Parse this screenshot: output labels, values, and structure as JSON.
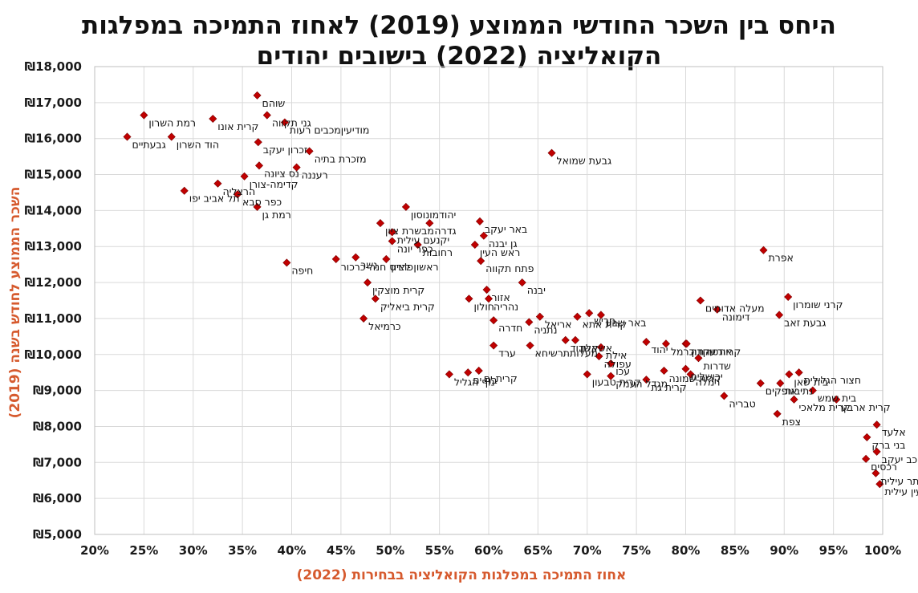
{
  "chart_data": {
    "type": "scatter",
    "title_line1": "היחס בין השכר החודשי הממוצע (2019) לאחוז התמיכה במפלגות",
    "title_line2": "הקואליציה (2022) בישובים יהודים",
    "xlabel": "אחוז התמיכה במפלגות הקואליציה בבחירות (2022)",
    "ylabel": "השכר הממוצע לחודש בשנה (2019)",
    "xlim": [
      0.2,
      1.0
    ],
    "ylim": [
      5000,
      18000
    ],
    "x_ticks": [
      0.2,
      0.25,
      0.3,
      0.35,
      0.4,
      0.45,
      0.5,
      0.55,
      0.6,
      0.65,
      0.7,
      0.75,
      0.8,
      0.85,
      0.9,
      0.95,
      1.0
    ],
    "x_tick_labels": [
      "20%",
      "25%",
      "30%",
      "35%",
      "40%",
      "45%",
      "50%",
      "55%",
      "60%",
      "65%",
      "70%",
      "75%",
      "80%",
      "85%",
      "90%",
      "95%",
      "100%"
    ],
    "y_ticks": [
      5000,
      6000,
      7000,
      8000,
      9000,
      10000,
      11000,
      12000,
      13000,
      14000,
      15000,
      16000,
      17000,
      18000
    ],
    "y_tick_labels": [
      "₪5,000",
      "₪6,000",
      "₪7,000",
      "₪8,000",
      "₪9,000",
      "₪10,000",
      "₪11,000",
      "₪12,000",
      "₪13,000",
      "₪14,000",
      "₪15,000",
      "₪16,000",
      "₪17,000",
      "₪18,000"
    ],
    "grid": true,
    "marker_color": "#c00000",
    "grid_color": "#d9d9d9",
    "points": [
      {
        "name": "שוהם",
        "x": 0.365,
        "y": 17200
      },
      {
        "name": "רמת השרון",
        "x": 0.25,
        "y": 16650
      },
      {
        "name": "קרית אונו",
        "x": 0.32,
        "y": 16550
      },
      {
        "name": "גני תקווה",
        "x": 0.375,
        "y": 16650
      },
      {
        "name": "מודיעיןמכבים רעות",
        "x": 0.393,
        "y": 16450
      },
      {
        "name": "גבעתיים",
        "x": 0.233,
        "y": 16050
      },
      {
        "name": "הוד השרון",
        "x": 0.278,
        "y": 16050
      },
      {
        "name": "זכרון יעקב",
        "x": 0.366,
        "y": 15900
      },
      {
        "name": "מזכרת בתיה",
        "x": 0.418,
        "y": 15650
      },
      {
        "name": "גבעת שמואל",
        "x": 0.664,
        "y": 15600
      },
      {
        "name": "נס ציונה",
        "x": 0.367,
        "y": 15250
      },
      {
        "name": "רעננה",
        "x": 0.405,
        "y": 15200
      },
      {
        "name": "קדימה-צורן",
        "x": 0.352,
        "y": 14950
      },
      {
        "name": "הרצליה",
        "x": 0.325,
        "y": 14750
      },
      {
        "name": "תל אביב יפו",
        "x": 0.291,
        "y": 14550
      },
      {
        "name": "כפר סבא",
        "x": 0.345,
        "y": 14450
      },
      {
        "name": "רמת גן",
        "x": 0.365,
        "y": 14100
      },
      {
        "name": "יהודמונוסון",
        "x": 0.516,
        "y": 14100
      },
      {
        "name": "מבשרת ציון",
        "x": 0.49,
        "y": 13650
      },
      {
        "name": "גדרה",
        "x": 0.54,
        "y": 13650
      },
      {
        "name": "באר יעקב",
        "x": 0.591,
        "y": 13700
      },
      {
        "name": "יקנעם עילית",
        "x": 0.502,
        "y": 13400
      },
      {
        "name": "גן יבנה",
        "x": 0.595,
        "y": 13300
      },
      {
        "name": "כפר יונה",
        "x": 0.502,
        "y": 13150
      },
      {
        "name": "רחובות",
        "x": 0.528,
        "y": 13050
      },
      {
        "name": "ראש העין",
        "x": 0.586,
        "y": 13050
      },
      {
        "name": "אפרת",
        "x": 0.879,
        "y": 12900
      },
      {
        "name": "נשר",
        "x": 0.465,
        "y": 12700
      },
      {
        "name": "ראשון לציון",
        "x": 0.496,
        "y": 12650
      },
      {
        "name": "פתח תקווה",
        "x": 0.592,
        "y": 12600
      },
      {
        "name": "חיפה",
        "x": 0.395,
        "y": 12550
      },
      {
        "name": "פרדס חנה-כרכור",
        "x": 0.445,
        "y": 12650
      },
      {
        "name": "קרית מוצקין",
        "x": 0.477,
        "y": 12000
      },
      {
        "name": "יבנה",
        "x": 0.634,
        "y": 12000
      },
      {
        "name": "אזור",
        "x": 0.598,
        "y": 11800
      },
      {
        "name": "קרית ביאליק",
        "x": 0.485,
        "y": 11550
      },
      {
        "name": "נהריה",
        "x": 0.6,
        "y": 11550
      },
      {
        "name": "חולון",
        "x": 0.58,
        "y": 11550
      },
      {
        "name": "מעלה אדומים",
        "x": 0.815,
        "y": 11500
      },
      {
        "name": "קרני שומרון",
        "x": 0.904,
        "y": 11600
      },
      {
        "name": "דימונה",
        "x": 0.832,
        "y": 11250
      },
      {
        "name": "חריש",
        "x": 0.702,
        "y": 11150
      },
      {
        "name": "גבעת זאב",
        "x": 0.895,
        "y": 11100
      },
      {
        "name": "קרית אתא",
        "x": 0.69,
        "y": 11050
      },
      {
        "name": "באר שבע",
        "x": 0.714,
        "y": 11100
      },
      {
        "name": "כרמיאל",
        "x": 0.473,
        "y": 11000
      },
      {
        "name": "חדרה",
        "x": 0.605,
        "y": 10950
      },
      {
        "name": "נתניה",
        "x": 0.641,
        "y": 10900
      },
      {
        "name": "אריאל",
        "x": 0.652,
        "y": 11050
      },
      {
        "name": "אור יהודה",
        "x": 0.8,
        "y": 10300
      },
      {
        "name": "מעלותתרשיחא",
        "x": 0.642,
        "y": 10250
      },
      {
        "name": "אשדוד",
        "x": 0.678,
        "y": 10400
      },
      {
        "name": "טירת כרמל",
        "x": 0.78,
        "y": 10300
      },
      {
        "name": "קרית עקרון",
        "x": 0.801,
        "y": 10300
      },
      {
        "name": "יהוד",
        "x": 0.76,
        "y": 10350
      },
      {
        "name": "אשקלון",
        "x": 0.688,
        "y": 10400
      },
      {
        "name": "עפולה",
        "x": 0.712,
        "y": 9950
      },
      {
        "name": "אילת",
        "x": 0.714,
        "y": 10200
      },
      {
        "name": "ערד",
        "x": 0.605,
        "y": 10250
      },
      {
        "name": "שדרות",
        "x": 0.813,
        "y": 9900
      },
      {
        "name": "עכו",
        "x": 0.724,
        "y": 9750
      },
      {
        "name": "ירושלים",
        "x": 0.8,
        "y": 9600
      },
      {
        "name": "קרית שמונה",
        "x": 0.778,
        "y": 9550
      },
      {
        "name": "בית שאן",
        "x": 0.905,
        "y": 9450
      },
      {
        "name": "חצור הגלילית",
        "x": 0.915,
        "y": 9500
      },
      {
        "name": "רמלה",
        "x": 0.805,
        "y": 9450
      },
      {
        "name": "קרית ים",
        "x": 0.59,
        "y": 9550
      },
      {
        "name": "מגדל העמק",
        "x": 0.724,
        "y": 9400
      },
      {
        "name": "אופקים",
        "x": 0.876,
        "y": 9200
      },
      {
        "name": "נתיבות",
        "x": 0.896,
        "y": 9200
      },
      {
        "name": "בית שמש",
        "x": 0.929,
        "y": 9000
      },
      {
        "name": "בת ים",
        "x": 0.579,
        "y": 9500
      },
      {
        "name": "נוף הגליל",
        "x": 0.56,
        "y": 9450
      },
      {
        "name": "קרית גת",
        "x": 0.76,
        "y": 9300
      },
      {
        "name": "טבריה",
        "x": 0.839,
        "y": 8850
      },
      {
        "name": "קרית מלאכי",
        "x": 0.91,
        "y": 8750
      },
      {
        "name": "צפת",
        "x": 0.893,
        "y": 8350
      },
      {
        "name": "קרית ארבע",
        "x": 0.953,
        "y": 8750
      },
      {
        "name": "קרית טבעון",
        "x": 0.7,
        "y": 9450
      },
      {
        "name": "אלעד",
        "x": 0.994,
        "y": 8050
      },
      {
        "name": "בני ברק",
        "x": 0.984,
        "y": 7700
      },
      {
        "name": "כוכב יעקב",
        "x": 0.994,
        "y": 7300
      },
      {
        "name": "רכסים",
        "x": 0.983,
        "y": 7100
      },
      {
        "name": "ביתר עילית",
        "x": 0.993,
        "y": 6700
      },
      {
        "name": "מודיעין עילית",
        "x": 0.997,
        "y": 6400
      }
    ]
  }
}
